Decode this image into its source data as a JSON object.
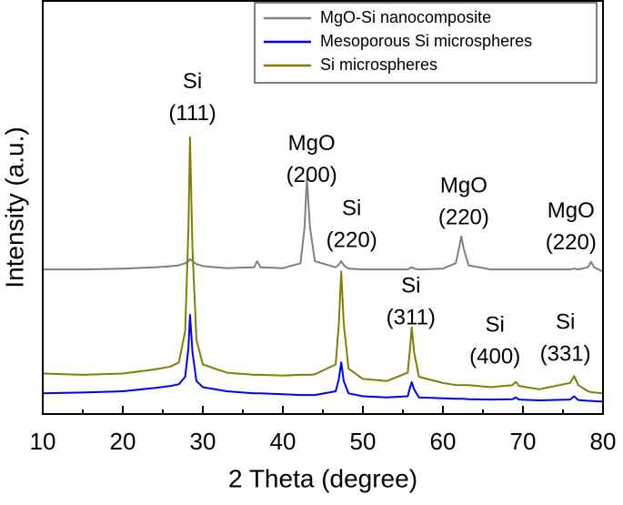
{
  "chart_data": {
    "type": "line",
    "xlabel": "2 Theta (degree)",
    "ylabel": "Intensity (a.u.)",
    "xlim": [
      10,
      80
    ],
    "xticks": [
      10,
      20,
      30,
      40,
      50,
      60,
      70,
      80
    ],
    "xminorticks": [
      15,
      25,
      35,
      45,
      55,
      65,
      75
    ],
    "ylim": [
      0,
      100
    ],
    "yticks": [],
    "legend": "top-right",
    "x": [
      10,
      15,
      20,
      24,
      26,
      27,
      27.8,
      28.2,
      28.4,
      28.7,
      29.2,
      30,
      33,
      36.4,
      36.8,
      37.2,
      40,
      42.2,
      42.7,
      43,
      43.4,
      44,
      46.6,
      47.0,
      47.3,
      47.6,
      48.2,
      50,
      53,
      55.6,
      55.9,
      56.1,
      56.4,
      57,
      60,
      61.6,
      62.0,
      62.3,
      62.6,
      63.2,
      66,
      68.7,
      69.1,
      69.5,
      72,
      75.9,
      76.4,
      76.9,
      78.1,
      78.5,
      78.9,
      80
    ],
    "series": [
      {
        "name": "MgO-Si nanocomposite",
        "color": "#808080",
        "values": [
          35,
          35,
          35.2,
          35.5,
          35.8,
          36,
          36.5,
          37,
          37.5,
          37,
          36.3,
          35.8,
          35.3,
          35.5,
          37,
          35.5,
          35.3,
          36.5,
          45,
          57,
          45,
          37,
          35.5,
          36.2,
          37,
          36,
          35.2,
          35,
          35,
          35,
          35.3,
          35.5,
          35.2,
          35,
          35.2,
          36.5,
          40,
          43,
          40,
          36,
          35,
          35,
          35,
          35,
          35,
          35,
          35.2,
          35,
          35.5,
          36.8,
          35.5,
          34.5
        ]
      },
      {
        "name": "Mesoporous Si microspheres",
        "color": "#0000ff",
        "values": [
          5,
          5.2,
          5.5,
          6.3,
          6.8,
          7.2,
          9,
          16,
          24,
          15,
          8,
          6.5,
          5.5,
          5,
          5,
          5,
          4.8,
          4.6,
          4.6,
          4.6,
          4.6,
          4.6,
          5.5,
          8.5,
          12.5,
          8,
          5,
          4.3,
          4,
          4.3,
          6.5,
          7.7,
          6,
          4,
          3.8,
          3.7,
          3.7,
          3.7,
          3.7,
          3.6,
          3.5,
          3.6,
          4,
          3.5,
          3.3,
          3.5,
          4.3,
          3.4,
          3.2,
          3.2,
          3.1,
          3
        ]
      },
      {
        "name": "Si microspheres",
        "color": "#808000",
        "values": [
          9.8,
          9.5,
          9.8,
          10.8,
          11.5,
          12.5,
          20,
          45,
          67,
          40,
          18,
          12,
          10,
          9.5,
          9.5,
          9.5,
          9.3,
          9.5,
          9.5,
          9.5,
          9.5,
          9.6,
          12,
          22,
          34.5,
          22,
          11,
          8.5,
          8,
          10,
          16,
          21,
          15,
          9,
          7.5,
          7,
          7,
          7,
          7,
          7,
          6.5,
          7,
          7.8,
          6.8,
          6,
          7.5,
          9.2,
          7,
          5.5,
          5.3,
          5.2,
          5
        ]
      }
    ],
    "annotations": [
      {
        "lines": [
          "Si",
          "(111)"
        ],
        "x": 28.7,
        "y": 80.2
      },
      {
        "lines": [
          "MgO",
          "(200)"
        ],
        "x": 43.6,
        "y": 65.3
      },
      {
        "lines": [
          "Si",
          "(220)"
        ],
        "x": 48.6,
        "y": 49.5
      },
      {
        "lines": [
          "MgO",
          "(220)"
        ],
        "x": 62.6,
        "y": 55
      },
      {
        "lines": [
          "MgO",
          "(220)"
        ],
        "x": 76,
        "y": 49
      },
      {
        "lines": [
          "Si",
          "(311)"
        ],
        "x": 56,
        "y": 30.8
      },
      {
        "lines": [
          "Si",
          "(400)"
        ],
        "x": 66.5,
        "y": 21.3
      },
      {
        "lines": [
          "Si",
          "(331)"
        ],
        "x": 75.3,
        "y": 22
      }
    ]
  }
}
